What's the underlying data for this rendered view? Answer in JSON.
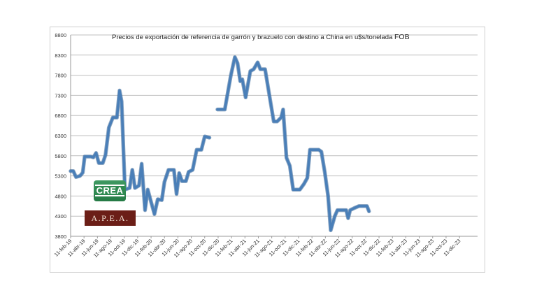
{
  "chart_data": {
    "type": "line",
    "title": "Precios de exportación de referencia de garrón  y brazuelo con destino a China en u$s/tonelada",
    "title_suffix": "FOB",
    "xlabel": "",
    "ylabel": "",
    "ylim": [
      3800,
      8800
    ],
    "yticks": [
      3800,
      4300,
      4800,
      5300,
      5800,
      6300,
      6800,
      7300,
      7800,
      8300,
      8800
    ],
    "x_tick_labels": [
      "11-feb-19",
      "11-abr-19",
      "11-jun-19",
      "11-ago-19",
      "11-oct-19",
      "11-dic-19",
      "11-feb-20",
      "11-abr-20",
      "11-jun-20",
      "11-ago-20",
      "11-oct-20",
      "11-dic-20",
      "11-feb-21",
      "11-abr-21",
      "11-jun-21",
      "11-ago-21",
      "11-oct-21",
      "11-dic-21",
      "11-feb-22",
      "11-abr-22",
      "11-jun-22",
      "11-ago-22",
      "11-oct-22",
      "11-dic-22",
      "11-feb-23",
      "11-abr-23",
      "11-jun-23",
      "11-ago-23",
      "11-oct-23",
      "11-dic-23"
    ],
    "x_tick_months": [
      0,
      2,
      4,
      6,
      8,
      10,
      12,
      14,
      16,
      18,
      20,
      22,
      24,
      26,
      28,
      30,
      32,
      34,
      36,
      38,
      40,
      42,
      44,
      46,
      48,
      50,
      52,
      54,
      56,
      58
    ],
    "x_range_months": [
      0,
      60.7
    ],
    "grid": true,
    "line_color": "#4a7fb8",
    "series": [
      {
        "segments": [
          [
            [
              0,
              5420
            ],
            [
              0.4,
              5420
            ],
            [
              0.8,
              5270
            ],
            [
              1.4,
              5300
            ],
            [
              1.8,
              5380
            ],
            [
              2.1,
              5780
            ],
            [
              2.6,
              5780
            ],
            [
              3,
              5780
            ],
            [
              3.4,
              5760
            ],
            [
              3.8,
              5870
            ],
            [
              4.2,
              5620
            ],
            [
              4.8,
              5620
            ],
            [
              5.2,
              5820
            ],
            [
              5.7,
              6500
            ],
            [
              6.3,
              6750
            ],
            [
              6.9,
              6750
            ],
            [
              7.3,
              7420
            ],
            [
              7.6,
              7150
            ],
            [
              8.1,
              4960
            ],
            [
              8.8,
              5000
            ],
            [
              9.2,
              5450
            ],
            [
              9.6,
              5000
            ],
            [
              10.2,
              5060
            ],
            [
              10.6,
              5600
            ],
            [
              11.1,
              4450
            ],
            [
              11.5,
              4960
            ],
            [
              12,
              4650
            ],
            [
              12.5,
              4350
            ],
            [
              13,
              4720
            ],
            [
              13.6,
              4700
            ],
            [
              14,
              5150
            ],
            [
              14.6,
              5450
            ],
            [
              15.4,
              5450
            ],
            [
              15.8,
              4850
            ],
            [
              16.2,
              5370
            ],
            [
              16.6,
              5170
            ],
            [
              17.2,
              5170
            ],
            [
              17.6,
              5400
            ],
            [
              18.2,
              5450
            ],
            [
              18.8,
              5950
            ],
            [
              19.5,
              5950
            ],
            [
              20,
              6280
            ],
            [
              20.7,
              6250
            ]
          ],
          [
            [
              21.9,
              6950
            ],
            [
              23,
              6950
            ],
            [
              23.9,
              7800
            ],
            [
              24.5,
              8250
            ],
            [
              24.9,
              8100
            ],
            [
              25.3,
              7650
            ],
            [
              25.6,
              7700
            ],
            [
              26.1,
              7250
            ],
            [
              26.8,
              7900
            ],
            [
              27.3,
              7950
            ],
            [
              27.9,
              8120
            ],
            [
              28.3,
              7950
            ],
            [
              29,
              7950
            ],
            [
              29.6,
              7350
            ],
            [
              30.3,
              6650
            ],
            [
              30.8,
              6650
            ],
            [
              31.4,
              6750
            ],
            [
              31.7,
              6950
            ],
            [
              32.2,
              5750
            ],
            [
              32.7,
              5550
            ],
            [
              33.2,
              4960
            ],
            [
              34.2,
              4960
            ],
            [
              34.8,
              5100
            ],
            [
              35.3,
              5250
            ],
            [
              35.7,
              5950
            ],
            [
              37,
              5950
            ],
            [
              37.4,
              5900
            ],
            [
              37.9,
              5400
            ],
            [
              38.4,
              4800
            ],
            [
              38.8,
              3950
            ],
            [
              39.4,
              4300
            ],
            [
              39.8,
              4450
            ],
            [
              40.5,
              4450
            ],
            [
              41.1,
              4450
            ],
            [
              41.4,
              4250
            ],
            [
              41.7,
              4450
            ],
            [
              42.3,
              4500
            ],
            [
              43,
              4550
            ],
            [
              44.2,
              4550
            ],
            [
              44.5,
              4420
            ]
          ]
        ]
      }
    ]
  }
}
